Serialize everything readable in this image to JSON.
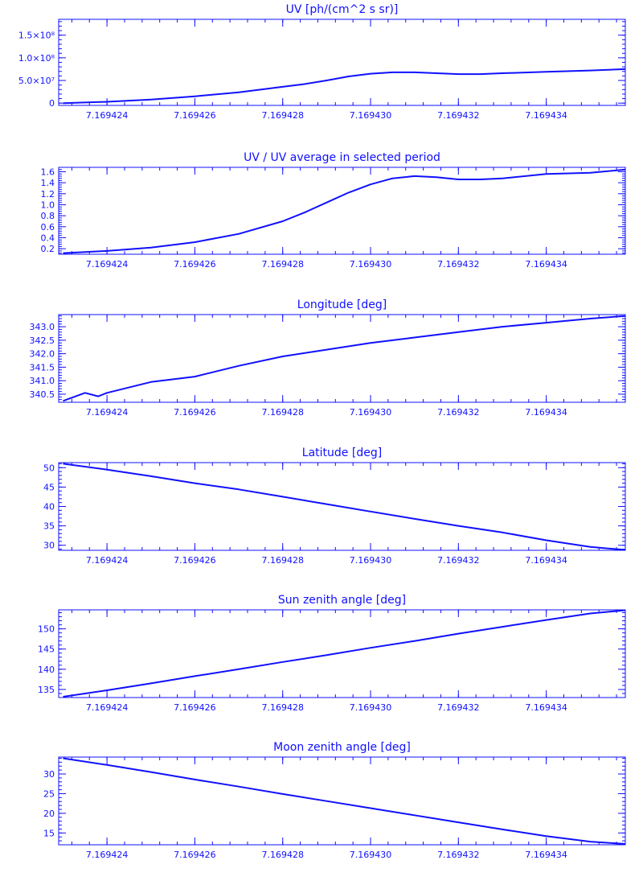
{
  "theme": {
    "color": "#1010ff",
    "background": "#ffffff"
  },
  "chart_data": [
    {
      "type": "line",
      "title": "UV [ph/(cm^2 s sr)]",
      "xlim": [
        7.1694229,
        7.1694358
      ],
      "ylim": [
        -5000000.0,
        185000000.0
      ],
      "xticks": [
        7.169424,
        7.169426,
        7.169428,
        7.16943,
        7.169432,
        7.169434
      ],
      "xtick_labels": [
        "7.169424",
        "7.169426",
        "7.169428",
        "7.169430",
        "7.169432",
        "7.169434"
      ],
      "yticks": [
        0,
        50000000.0,
        100000000.0,
        150000000.0
      ],
      "ytick_labels": [
        "0",
        "5.0×10⁷",
        "1.0×10⁸",
        "1.5×10⁸"
      ],
      "x": [
        7.169423,
        7.169424,
        7.169425,
        7.169426,
        7.169427,
        7.169428,
        7.1694285,
        7.169429,
        7.1694295,
        7.16943,
        7.1694305,
        7.169431,
        7.1694315,
        7.169432,
        7.1694325,
        7.169433,
        7.169434,
        7.169435,
        7.1694358
      ],
      "y": [
        0.0,
        3000000.0,
        8000000.0,
        15000000.0,
        24000000.0,
        36000000.0,
        42000000.0,
        50000000.0,
        59000000.0,
        65000000.0,
        68000000.0,
        68000000.0,
        66000000.0,
        64000000.0,
        64000000.0,
        66000000.0,
        69000000.0,
        72000000.0,
        75000000.0
      ]
    },
    {
      "type": "line",
      "title": "UV / UV average in selected period",
      "xlim": [
        7.1694229,
        7.1694358
      ],
      "ylim": [
        0.1,
        1.68
      ],
      "xticks": [
        7.169424,
        7.169426,
        7.169428,
        7.16943,
        7.169432,
        7.169434
      ],
      "xtick_labels": [
        "7.169424",
        "7.169426",
        "7.169428",
        "7.169430",
        "7.169432",
        "7.169434"
      ],
      "yticks": [
        0.2,
        0.4,
        0.6,
        0.8,
        1.0,
        1.2,
        1.4,
        1.6
      ],
      "ytick_labels": [
        "0.2",
        "0.4",
        "0.6",
        "0.8",
        "1.0",
        "1.2",
        "1.4",
        "1.6"
      ],
      "x": [
        7.169423,
        7.169424,
        7.169425,
        7.169426,
        7.169427,
        7.169428,
        7.1694285,
        7.169429,
        7.1694295,
        7.16943,
        7.1694305,
        7.169431,
        7.1694315,
        7.169432,
        7.1694325,
        7.169433,
        7.169434,
        7.1694345,
        7.169435,
        7.1694358
      ],
      "y": [
        0.12,
        0.16,
        0.22,
        0.32,
        0.47,
        0.7,
        0.86,
        1.04,
        1.22,
        1.37,
        1.48,
        1.52,
        1.5,
        1.46,
        1.46,
        1.48,
        1.56,
        1.57,
        1.58,
        1.64
      ]
    },
    {
      "type": "line",
      "title": "Longitude [deg]",
      "xlim": [
        7.1694229,
        7.1694358
      ],
      "ylim": [
        340.2,
        343.45
      ],
      "xticks": [
        7.169424,
        7.169426,
        7.169428,
        7.16943,
        7.169432,
        7.169434
      ],
      "xtick_labels": [
        "7.169424",
        "7.169426",
        "7.169428",
        "7.169430",
        "7.169432",
        "7.169434"
      ],
      "yticks": [
        340.5,
        341.0,
        341.5,
        342.0,
        342.5,
        343.0
      ],
      "ytick_labels": [
        "340.5",
        "341.0",
        "341.5",
        "342.0",
        "342.5",
        "343.0"
      ],
      "x": [
        7.169423,
        7.1694235,
        7.1694238,
        7.169424,
        7.169425,
        7.169426,
        7.169427,
        7.169428,
        7.169429,
        7.16943,
        7.169431,
        7.169432,
        7.169433,
        7.169434,
        7.169435,
        7.1694358
      ],
      "y": [
        340.25,
        340.55,
        340.42,
        340.55,
        340.95,
        341.15,
        341.55,
        341.9,
        342.15,
        342.4,
        342.6,
        342.8,
        343.0,
        343.15,
        343.3,
        343.4
      ]
    },
    {
      "type": "line",
      "title": "Latitude [deg]",
      "xlim": [
        7.1694229,
        7.1694358
      ],
      "ylim": [
        28.7,
        51.3
      ],
      "xticks": [
        7.169424,
        7.169426,
        7.169428,
        7.16943,
        7.169432,
        7.169434
      ],
      "xtick_labels": [
        "7.169424",
        "7.169426",
        "7.169428",
        "7.169430",
        "7.169432",
        "7.169434"
      ],
      "yticks": [
        30,
        35,
        40,
        45,
        50
      ],
      "ytick_labels": [
        "30",
        "35",
        "40",
        "45",
        "50"
      ],
      "x": [
        7.169423,
        7.169424,
        7.169425,
        7.169426,
        7.169427,
        7.169428,
        7.169429,
        7.16943,
        7.169431,
        7.169432,
        7.169433,
        7.169434,
        7.169435,
        7.1694358
      ],
      "y": [
        51.0,
        49.5,
        47.8,
        46.0,
        44.4,
        42.5,
        40.6,
        38.7,
        36.8,
        35.0,
        33.3,
        31.3,
        29.6,
        28.8
      ]
    },
    {
      "type": "line",
      "title": "Sun zenith angle [deg]",
      "xlim": [
        7.1694229,
        7.1694358
      ],
      "ylim": [
        133.0,
        154.7
      ],
      "xticks": [
        7.169424,
        7.169426,
        7.169428,
        7.16943,
        7.169432,
        7.169434
      ],
      "xtick_labels": [
        "7.169424",
        "7.169426",
        "7.169428",
        "7.169430",
        "7.169432",
        "7.169434"
      ],
      "yticks": [
        135,
        140,
        145,
        150
      ],
      "ytick_labels": [
        "135",
        "140",
        "145",
        "150"
      ],
      "x": [
        7.169423,
        7.169424,
        7.169425,
        7.169426,
        7.169427,
        7.169428,
        7.169429,
        7.16943,
        7.169431,
        7.169432,
        7.169433,
        7.169434,
        7.169435,
        7.1694358
      ],
      "y": [
        133.2,
        134.8,
        136.5,
        138.3,
        140.0,
        141.8,
        143.5,
        145.3,
        147.0,
        148.8,
        150.5,
        152.2,
        153.8,
        154.6
      ]
    },
    {
      "type": "line",
      "title": "Moon zenith angle [deg]",
      "xlim": [
        7.1694229,
        7.1694358
      ],
      "ylim": [
        12.0,
        34.3
      ],
      "xticks": [
        7.169424,
        7.169426,
        7.169428,
        7.16943,
        7.169432,
        7.169434
      ],
      "xtick_labels": [
        "7.169424",
        "7.169426",
        "7.169428",
        "7.169430",
        "7.169432",
        "7.169434"
      ],
      "yticks": [
        15,
        20,
        25,
        30
      ],
      "ytick_labels": [
        "15",
        "20",
        "25",
        "30"
      ],
      "x": [
        7.169423,
        7.169424,
        7.169425,
        7.169426,
        7.169427,
        7.169428,
        7.169429,
        7.16943,
        7.169431,
        7.169432,
        7.169433,
        7.169434,
        7.169435,
        7.1694358
      ],
      "y": [
        34.0,
        32.3,
        30.5,
        28.6,
        26.8,
        24.9,
        23.1,
        21.3,
        19.5,
        17.7,
        15.9,
        14.2,
        12.8,
        12.2
      ]
    }
  ]
}
